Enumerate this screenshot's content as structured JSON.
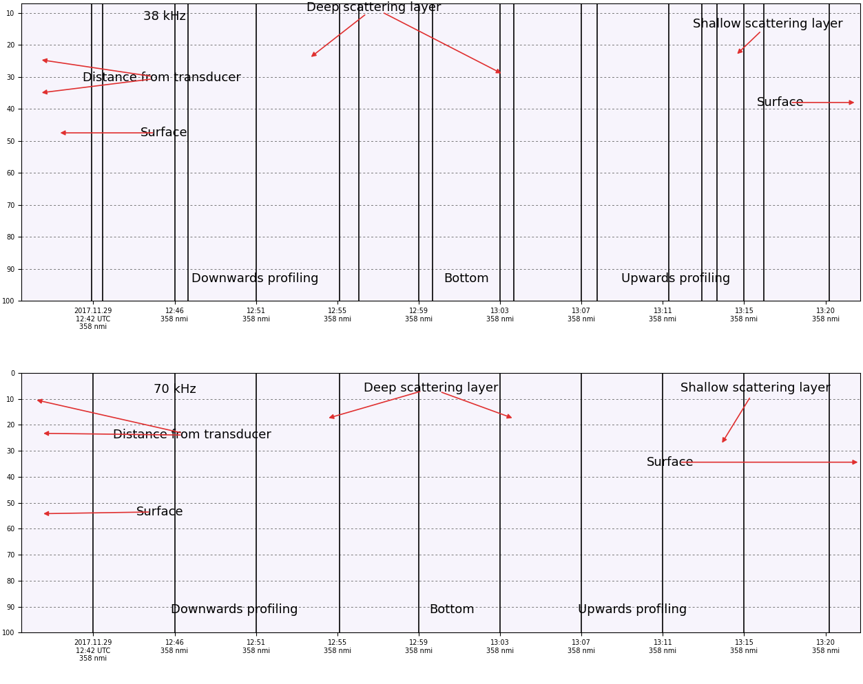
{
  "chart_data": [
    {
      "type": "echogram",
      "label": "38 kHz",
      "annotations": [
        "Deep scattering layer",
        "Shallow scattering layer",
        "Distance from transducer",
        "Surface",
        "Surface",
        "Downwards profiling",
        "Bottom",
        "Upwards profiling"
      ],
      "xlim": [
        -3.7,
        39.6
      ],
      "ylim": [
        100,
        7
      ],
      "xticks": [
        {
          "value": 0,
          "label": "2017.11.29\n12:42 UTC\n358 nmi"
        },
        {
          "value": 4.2,
          "label": "12:46\n358 nmi"
        },
        {
          "value": 8.4,
          "label": "12:51\n358 nmi"
        },
        {
          "value": 12.6,
          "label": "12:55\n358 nmi"
        },
        {
          "value": 16.8,
          "label": "12:59\n358 nmi"
        },
        {
          "value": 21.0,
          "label": "13:03\n358 nmi"
        },
        {
          "value": 25.2,
          "label": "13:07\n358 nmi"
        },
        {
          "value": 29.4,
          "label": "13:11\n358 nmi"
        },
        {
          "value": 33.6,
          "label": "13:15\n358 nmi"
        },
        {
          "value": 37.8,
          "label": "13:20\n358 nmi"
        }
      ],
      "yticks": [
        10,
        20,
        30,
        40,
        50,
        60,
        70,
        80,
        90,
        100
      ],
      "vertical_lines": [
        -0.1,
        0.5,
        4.2,
        4.9,
        8.4,
        12.7,
        13.7,
        16.8,
        17.5,
        21.0,
        21.7,
        25.2,
        26.0,
        29.7,
        31.4,
        32.2,
        33.6,
        34.6,
        38.0
      ],
      "grid": true
    },
    {
      "type": "echogram",
      "label": "70 kHz",
      "annotations": [
        "Deep scattering layer",
        "Shallow scattering layer",
        "Distance from transducer",
        "Surface",
        "Surface",
        "Downwards profiling",
        "Bottom",
        "Upwards profiling"
      ],
      "xlim": [
        -3.7,
        39.6
      ],
      "ylim": [
        100,
        0
      ],
      "xticks": [
        {
          "value": 0,
          "label": "2017.11.29\n12:42 UTC\n358 nmi"
        },
        {
          "value": 4.2,
          "label": "12:46\n358 nmi"
        },
        {
          "value": 8.4,
          "label": "12:51\n358 nmi"
        },
        {
          "value": 12.6,
          "label": "12:55\n358 nmi"
        },
        {
          "value": 16.8,
          "label": "12:59\n358 nmi"
        },
        {
          "value": 21.0,
          "label": "13:03\n358 nmi"
        },
        {
          "value": 25.2,
          "label": "13:07\n358 nmi"
        },
        {
          "value": 29.4,
          "label": "13:11\n358 nmi"
        },
        {
          "value": 33.6,
          "label": "13:15\n358 nmi"
        },
        {
          "value": 37.8,
          "label": "13:20\n358 nmi"
        }
      ],
      "yticks": [
        0,
        10,
        20,
        30,
        40,
        50,
        60,
        70,
        80,
        90,
        100
      ],
      "vertical_lines": [
        0.0,
        4.2,
        8.4,
        12.7,
        16.8,
        21.0,
        25.2,
        29.4,
        33.6,
        38.0
      ],
      "grid": true
    }
  ]
}
